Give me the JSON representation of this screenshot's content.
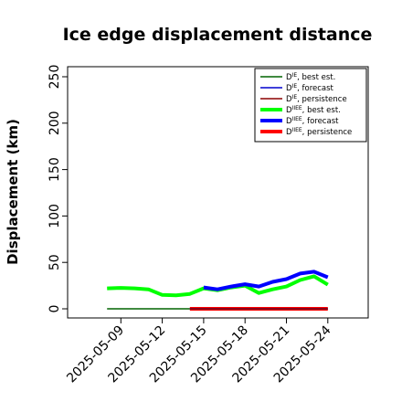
{
  "chart_data": {
    "type": "line",
    "title": "Ice edge displacement distance",
    "xlabel": "",
    "ylabel": "Displacement (km)",
    "ylim": [
      0,
      260
    ],
    "yticks": [
      0,
      50,
      100,
      150,
      200,
      250
    ],
    "xlim": [
      "2025-05-06",
      "2025-05-26"
    ],
    "xticks": [
      {
        "label": "2025-05-09",
        "date": "2025-05-09",
        "color": "#000000"
      },
      {
        "label": "2025-05-12",
        "date": "2025-05-12",
        "color": "#000000"
      },
      {
        "label": "2025-05-15",
        "date": "2025-05-15",
        "color": "#228B22"
      },
      {
        "label": "2025-05-18",
        "date": "2025-05-18",
        "color": "#000000"
      },
      {
        "label": "2025-05-21",
        "date": "2025-05-21",
        "color": "#000000"
      },
      {
        "label": "2025-05-24",
        "date": "2025-05-24",
        "color": "#000000"
      }
    ],
    "grid": false,
    "legend_position": "top-right",
    "series": [
      {
        "name": "D^IE, best est.",
        "label_base": "D",
        "label_sup": "IE",
        "label_rest": ", best est.",
        "color": "#006400",
        "width": 1.5,
        "x": [
          "2025-05-08",
          "2025-05-09",
          "2025-05-10",
          "2025-05-11",
          "2025-05-12",
          "2025-05-13",
          "2025-05-14"
        ],
        "values": [
          0,
          0,
          0,
          0,
          0,
          0,
          0
        ]
      },
      {
        "name": "D^IE, forecast",
        "label_base": "D",
        "label_sup": "IE",
        "label_rest": ", forecast",
        "color": "#0000CD",
        "width": 1.5,
        "x": [
          "2025-05-14",
          "2025-05-15",
          "2025-05-16",
          "2025-05-17",
          "2025-05-18",
          "2025-05-19",
          "2025-05-20",
          "2025-05-21",
          "2025-05-22",
          "2025-05-23",
          "2025-05-24"
        ],
        "values": [
          0,
          0,
          0,
          0,
          0,
          0,
          0,
          0,
          0,
          0,
          0
        ]
      },
      {
        "name": "D^IE, persistence",
        "label_base": "D",
        "label_sup": "IE",
        "label_rest": ", persistence",
        "color": "#8B0000",
        "width": 1.5,
        "x": [
          "2025-05-14",
          "2025-05-24"
        ],
        "values": [
          0,
          0
        ]
      },
      {
        "name": "D^IIEE, best est.",
        "label_base": "D",
        "label_sup": "IIEE",
        "label_rest": ", best est.",
        "color": "#00FF00",
        "width": 4,
        "x": [
          "2025-05-08",
          "2025-05-09",
          "2025-05-10",
          "2025-05-11",
          "2025-05-12",
          "2025-05-13",
          "2025-05-14",
          "2025-05-15",
          "2025-05-16",
          "2025-05-17",
          "2025-05-18",
          "2025-05-19",
          "2025-05-20",
          "2025-05-21",
          "2025-05-22",
          "2025-05-23",
          "2025-05-24"
        ],
        "values": [
          22,
          22.5,
          22,
          21,
          15,
          14.5,
          16,
          22,
          20,
          23,
          25,
          17,
          21,
          24,
          31,
          35,
          26
        ]
      },
      {
        "name": "D^IIEE, forecast",
        "label_base": "D",
        "label_sup": "IIEE",
        "label_rest": ", forecast",
        "color": "#0000FF",
        "width": 4,
        "x": [
          "2025-05-15",
          "2025-05-16",
          "2025-05-17",
          "2025-05-18",
          "2025-05-19",
          "2025-05-20",
          "2025-05-21",
          "2025-05-22",
          "2025-05-23",
          "2025-05-24"
        ],
        "values": [
          23,
          21,
          24,
          26.5,
          24,
          29,
          32,
          38,
          40,
          34
        ]
      },
      {
        "name": "D^IIEE, persistence",
        "label_base": "D",
        "label_sup": "IIEE",
        "label_rest": ", persistence",
        "color": "#FF0000",
        "width": 4,
        "x": [
          "2025-05-14",
          "2025-05-24"
        ],
        "values": [
          0,
          0
        ]
      }
    ]
  }
}
